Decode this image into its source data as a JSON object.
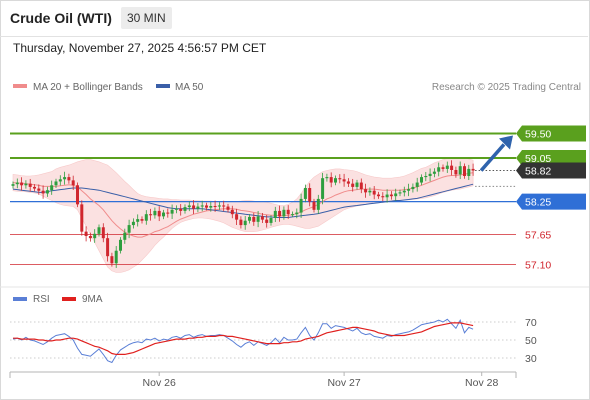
{
  "header": {
    "title": "Crude Oil (WTI)",
    "timeframe": "30 MIN",
    "datetime": "Thursday, November 27, 2025 4:56:57 PM CET"
  },
  "legend": {
    "ma20": "MA 20 + Bollinger Bands",
    "ma50": "MA 50",
    "credit": "Research © 2025 Trading Central"
  },
  "colors": {
    "up_candle": "#2e9e3e",
    "down_candle": "#d0262e",
    "ma20": "#f08c8c",
    "ma50": "#3a5fa8",
    "bollinger_fill": "#fbe1e1",
    "resistance": "#5aa01e",
    "support": "#2f6fd6",
    "target_arrow": "#2f63ad",
    "rsi": "#5a7fd6",
    "rsi_ma": "#e0201e"
  },
  "chart_data": [
    {
      "type": "candlestick",
      "title": "Crude Oil (WTI)",
      "timeframe": "30 MIN",
      "x_tick_labels": [
        "Nov 26",
        "Nov 27",
        "Nov 28"
      ],
      "ylim": [
        56.85,
        60.15
      ],
      "current_price": 58.82,
      "levels": [
        {
          "value": 59.5,
          "kind": "resistance",
          "label": "59.50"
        },
        {
          "value": 59.05,
          "kind": "resistance",
          "label": "59.05"
        },
        {
          "value": 58.25,
          "kind": "support",
          "label": "58.25"
        },
        {
          "value": 57.65,
          "kind": "support-minor",
          "label": "57.65"
        },
        {
          "value": 57.1,
          "kind": "support-minor",
          "label": "57.10"
        }
      ],
      "target": {
        "from": 58.82,
        "to": 59.5
      },
      "close": [
        58.57,
        58.6,
        58.55,
        58.58,
        58.52,
        58.49,
        58.45,
        58.4,
        58.46,
        58.55,
        58.62,
        58.66,
        58.7,
        58.64,
        58.55,
        58.2,
        57.7,
        57.62,
        57.58,
        57.66,
        57.78,
        57.58,
        57.25,
        57.12,
        57.35,
        57.55,
        57.68,
        57.82,
        57.88,
        57.93,
        57.9,
        58.02,
        58.0,
        58.08,
        57.98,
        58.05,
        58.03,
        58.1,
        58.12,
        58.08,
        58.15,
        58.18,
        58.12,
        58.16,
        58.18,
        58.14,
        58.17,
        58.16,
        58.18,
        58.16,
        58.1,
        58.02,
        57.92,
        57.82,
        57.9,
        57.97,
        57.88,
        57.98,
        57.92,
        57.86,
        57.95,
        58.08,
        57.98,
        58.1,
        58.02,
        58.02,
        58.05,
        58.3,
        58.5,
        58.25,
        58.1,
        58.3,
        58.68,
        58.7,
        58.6,
        58.68,
        58.66,
        58.62,
        58.58,
        58.52,
        58.6,
        58.48,
        58.42,
        58.45,
        58.38,
        58.35,
        58.33,
        58.38,
        58.35,
        58.4,
        58.42,
        58.45,
        58.48,
        58.52,
        58.6,
        58.7,
        58.72,
        58.76,
        58.8,
        58.88,
        58.85,
        58.91,
        58.83,
        58.75,
        58.9,
        58.72,
        58.85,
        58.82
      ],
      "ma20": [
        58.6,
        58.59,
        58.59,
        58.58,
        58.57,
        58.56,
        58.55,
        58.53,
        58.53,
        58.53,
        58.53,
        58.54,
        58.55,
        58.56,
        58.55,
        58.52,
        58.45,
        58.38,
        58.3,
        58.24,
        58.18,
        58.1,
        58.0,
        57.9,
        57.82,
        57.75,
        57.69,
        57.65,
        57.62,
        57.6,
        57.6,
        57.63,
        57.66,
        57.7,
        57.72,
        57.76,
        57.79,
        57.84,
        57.89,
        57.93,
        57.96,
        57.99,
        58.02,
        58.04,
        58.06,
        58.08,
        58.09,
        58.1,
        58.11,
        58.12,
        58.12,
        58.12,
        58.11,
        58.09,
        58.08,
        58.07,
        58.05,
        58.04,
        58.02,
        58.01,
        58.0,
        58.0,
        57.99,
        57.99,
        58.0,
        58.01,
        58.03,
        58.06,
        58.1,
        58.13,
        58.16,
        58.2,
        58.25,
        58.3,
        58.33,
        58.37,
        58.4,
        58.43,
        58.45,
        58.46,
        58.47,
        58.48,
        58.48,
        58.48,
        58.48,
        58.47,
        58.46,
        58.46,
        58.46,
        58.46,
        58.46,
        58.47,
        58.48,
        58.5,
        58.52,
        58.55,
        58.58,
        58.61,
        58.64,
        58.67,
        58.7,
        58.72,
        58.73,
        58.73,
        58.74,
        58.75,
        58.77,
        58.78
      ],
      "bollinger_upper": [
        58.75,
        58.74,
        58.73,
        58.72,
        58.72,
        58.73,
        58.74,
        58.76,
        58.78,
        58.8,
        58.85,
        58.88,
        58.9,
        58.92,
        58.95,
        58.98,
        59.0,
        59.02,
        59.02,
        59.0,
        58.98,
        58.95,
        58.92,
        58.85,
        58.78,
        58.7,
        58.62,
        58.55,
        58.47,
        58.4,
        58.36,
        58.34,
        58.33,
        58.32,
        58.31,
        58.3,
        58.3,
        58.29,
        58.29,
        58.28,
        58.28,
        58.28,
        58.27,
        58.27,
        58.26,
        58.26,
        58.26,
        58.25,
        58.25,
        58.25,
        58.25,
        58.25,
        58.25,
        58.26,
        58.27,
        58.27,
        58.26,
        58.25,
        58.25,
        58.24,
        58.22,
        58.2,
        58.18,
        58.18,
        58.2,
        58.24,
        58.3,
        58.4,
        58.52,
        58.62,
        58.7,
        58.75,
        58.8,
        58.82,
        58.84,
        58.85,
        58.85,
        58.84,
        58.83,
        58.82,
        58.8,
        58.77,
        58.74,
        58.72,
        58.7,
        58.69,
        58.68,
        58.68,
        58.68,
        58.69,
        58.7,
        58.72,
        58.75,
        58.78,
        58.82,
        58.86,
        58.88,
        58.92,
        58.96,
        58.99,
        59.02,
        59.04,
        59.05,
        59.06,
        59.06,
        59.05,
        59.03,
        59.01
      ],
      "bollinger_lower": [
        58.45,
        58.44,
        58.44,
        58.43,
        58.42,
        58.41,
        58.39,
        58.35,
        58.31,
        58.27,
        58.23,
        58.2,
        58.18,
        58.17,
        58.16,
        58.1,
        57.95,
        57.8,
        57.65,
        57.5,
        57.35,
        57.2,
        57.05,
        56.98,
        56.95,
        56.95,
        56.97,
        57.0,
        57.05,
        57.1,
        57.18,
        57.26,
        57.35,
        57.45,
        57.53,
        57.6,
        57.68,
        57.76,
        57.82,
        57.87,
        57.9,
        57.92,
        57.94,
        57.95,
        57.95,
        57.94,
        57.93,
        57.91,
        57.89,
        57.86,
        57.82,
        57.78,
        57.75,
        57.72,
        57.7,
        57.7,
        57.7,
        57.71,
        57.73,
        57.75,
        57.78,
        57.8,
        57.82,
        57.83,
        57.83,
        57.82,
        57.8,
        57.78,
        57.76,
        57.76,
        57.78,
        57.8,
        57.85,
        57.9,
        57.95,
        58.0,
        58.05,
        58.1,
        58.13,
        58.15,
        58.17,
        58.18,
        58.2,
        58.22,
        58.24,
        58.25,
        58.26,
        58.26,
        58.26,
        58.27,
        58.27,
        58.28,
        58.28,
        58.29,
        58.3,
        58.31,
        58.32,
        58.34,
        58.36,
        58.39,
        58.42,
        58.44,
        58.46,
        58.47,
        58.48,
        58.5,
        58.52,
        58.54
      ],
      "ma50": [
        58.48,
        58.47,
        58.46,
        58.45,
        58.44,
        58.43,
        58.42,
        58.42,
        58.43,
        58.45,
        58.46,
        58.47,
        58.48,
        58.49,
        58.5,
        58.5,
        58.5,
        58.49,
        58.48,
        58.47,
        58.46,
        58.44,
        58.42,
        58.4,
        58.38,
        58.36,
        58.34,
        58.32,
        58.3,
        58.28,
        58.26,
        58.24,
        58.22,
        58.2,
        58.18,
        58.16,
        58.14,
        58.13,
        58.12,
        58.12,
        58.12,
        58.12,
        58.12,
        58.12,
        58.12,
        58.11,
        58.1,
        58.09,
        58.08,
        58.07,
        58.06,
        58.05,
        58.04,
        58.03,
        58.02,
        58.01,
        58.0,
        57.99,
        57.98,
        57.97,
        57.97,
        57.96,
        57.96,
        57.96,
        57.96,
        57.97,
        57.98,
        57.99,
        58.0,
        58.01,
        58.02,
        58.03,
        58.05,
        58.07,
        58.09,
        58.11,
        58.13,
        58.15,
        58.16,
        58.17,
        58.18,
        58.19,
        58.2,
        58.21,
        58.22,
        58.23,
        58.24,
        58.25,
        58.26,
        58.27,
        58.27,
        58.28,
        58.29,
        58.3,
        58.31,
        58.33,
        58.35,
        58.37,
        58.39,
        58.41,
        58.43,
        58.45,
        58.47,
        58.49,
        58.51,
        58.53,
        58.55,
        58.57
      ]
    },
    {
      "type": "line",
      "title": "RSI",
      "ylim": [
        20,
        80
      ],
      "y_tick_labels": [
        "70",
        "50",
        "30"
      ],
      "gridlines": [
        70,
        50,
        30
      ],
      "series": [
        {
          "name": "RSI",
          "values": [
            51,
            52,
            50,
            53,
            50,
            49,
            47,
            45,
            48,
            52,
            55,
            56,
            57,
            54,
            50,
            41,
            34,
            33,
            32,
            36,
            40,
            34,
            27,
            25,
            33,
            39,
            42,
            45,
            47,
            48,
            47,
            51,
            50,
            52,
            49,
            51,
            50,
            53,
            54,
            52,
            55,
            56,
            53,
            55,
            56,
            54,
            55,
            55,
            56,
            55,
            52,
            49,
            45,
            42,
            46,
            48,
            44,
            48,
            46,
            44,
            47,
            52,
            47,
            53,
            50,
            50,
            51,
            58,
            64,
            55,
            50,
            58,
            68,
            68,
            63,
            66,
            65,
            64,
            62,
            60,
            63,
            58,
            56,
            57,
            54,
            53,
            52,
            55,
            54,
            56,
            57,
            58,
            59,
            61,
            64,
            67,
            68,
            69,
            70,
            72,
            70,
            73,
            68,
            63,
            72,
            58,
            64,
            62
          ]
        },
        {
          "name": "9MA",
          "values": [
            52,
            52,
            51,
            51,
            51,
            51,
            50,
            50,
            49,
            49,
            50,
            50,
            51,
            52,
            52,
            51,
            49,
            47,
            45,
            43,
            42,
            40,
            38,
            35,
            34,
            34,
            34,
            35,
            36,
            38,
            40,
            42,
            44,
            46,
            47,
            48,
            49,
            50,
            51,
            51,
            51,
            52,
            52,
            53,
            53,
            54,
            54,
            54,
            55,
            55,
            54,
            54,
            53,
            52,
            51,
            50,
            49,
            48,
            47,
            46,
            46,
            46,
            46,
            47,
            47,
            48,
            48,
            49,
            51,
            52,
            53,
            54,
            56,
            58,
            59,
            60,
            61,
            62,
            63,
            64,
            64,
            63,
            62,
            61,
            60,
            58,
            57,
            56,
            55,
            55,
            55,
            55,
            56,
            57,
            58,
            59,
            61,
            63,
            65,
            66,
            67,
            68,
            69,
            69,
            69,
            68,
            67,
            66
          ]
        }
      ]
    }
  ]
}
